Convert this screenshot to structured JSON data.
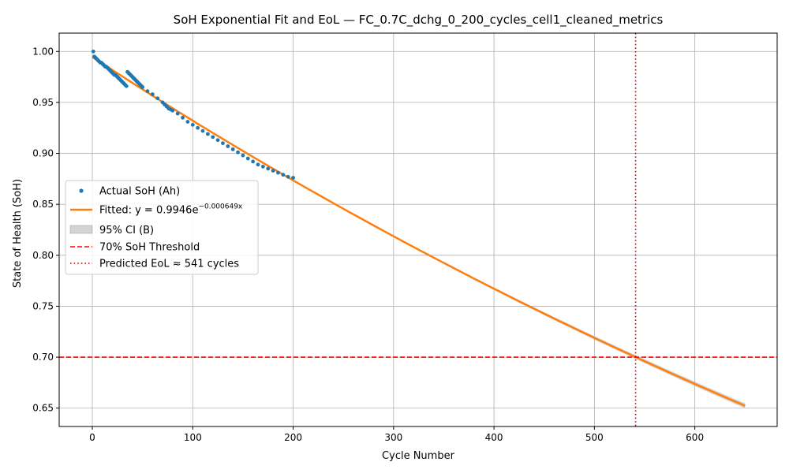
{
  "chart_data": {
    "type": "line",
    "title": "SoH Exponential Fit and EoL — FC_0.7C_dchg_0_200_cycles_cell1_cleaned_metrics",
    "xlabel": "Cycle Number",
    "ylabel": "State of Health (SoH)",
    "xlim": [
      -33,
      682
    ],
    "ylim": [
      0.632,
      1.018
    ],
    "xticks": [
      0,
      100,
      200,
      300,
      400,
      500,
      600
    ],
    "yticks": [
      0.65,
      0.7,
      0.75,
      0.8,
      0.85,
      0.9,
      0.95,
      1.0
    ],
    "grid": true,
    "legend_position": "center-left",
    "fit": {
      "a": 0.9946,
      "b": -0.000649,
      "x_range": [
        0,
        650
      ],
      "ci_width_at_end": 0.0025
    },
    "threshold": 0.7,
    "eol_cycle": 541,
    "actual_soh": {
      "x": [
        1,
        2,
        3,
        4,
        5,
        6,
        7,
        8,
        9,
        10,
        11,
        12,
        13,
        14,
        15,
        16,
        17,
        18,
        19,
        20,
        21,
        22,
        23,
        24,
        25,
        26,
        27,
        28,
        29,
        30,
        31,
        32,
        33,
        34,
        35,
        36,
        37,
        38,
        39,
        40,
        41,
        42,
        43,
        44,
        45,
        46,
        47,
        48,
        49,
        50,
        55,
        60,
        65,
        70,
        72,
        74,
        76,
        78,
        80,
        85,
        90,
        95,
        100,
        105,
        110,
        115,
        120,
        125,
        130,
        135,
        140,
        145,
        150,
        155,
        160,
        165,
        170,
        175,
        180,
        185,
        190,
        195,
        200
      ],
      "y": [
        1.0,
        0.995,
        0.994,
        0.993,
        0.992,
        0.991,
        0.99,
        0.989,
        0.989,
        0.988,
        0.987,
        0.986,
        0.985,
        0.985,
        0.984,
        0.983,
        0.982,
        0.981,
        0.98,
        0.979,
        0.978,
        0.977,
        0.977,
        0.976,
        0.975,
        0.974,
        0.973,
        0.972,
        0.971,
        0.97,
        0.969,
        0.968,
        0.967,
        0.966,
        0.98,
        0.979,
        0.978,
        0.977,
        0.976,
        0.975,
        0.974,
        0.973,
        0.972,
        0.971,
        0.97,
        0.969,
        0.968,
        0.967,
        0.966,
        0.965,
        0.961,
        0.958,
        0.954,
        0.95,
        0.948,
        0.946,
        0.944,
        0.943,
        0.942,
        0.939,
        0.935,
        0.931,
        0.928,
        0.925,
        0.922,
        0.919,
        0.916,
        0.913,
        0.91,
        0.907,
        0.904,
        0.901,
        0.898,
        0.895,
        0.892,
        0.889,
        0.887,
        0.885,
        0.883,
        0.881,
        0.879,
        0.877,
        0.876
      ]
    },
    "legend": [
      {
        "key": "actual",
        "label": "Actual SoH (Ah)"
      },
      {
        "key": "fit",
        "label": "Fitted: y = 0.9946e",
        "sup": "−0.000649x"
      },
      {
        "key": "ci",
        "label": "95% CI (B)"
      },
      {
        "key": "threshold",
        "label": "70% SoH Threshold"
      },
      {
        "key": "eol",
        "label": "Predicted EoL ≈ 541 cycles"
      }
    ],
    "colors": {
      "actual": "#1f77b4",
      "fit": "#ff7f0e",
      "ci": "#aaaaaa",
      "threshold": "#ff0000",
      "eol": "#cc0000",
      "grid": "#b0b0b0"
    }
  }
}
